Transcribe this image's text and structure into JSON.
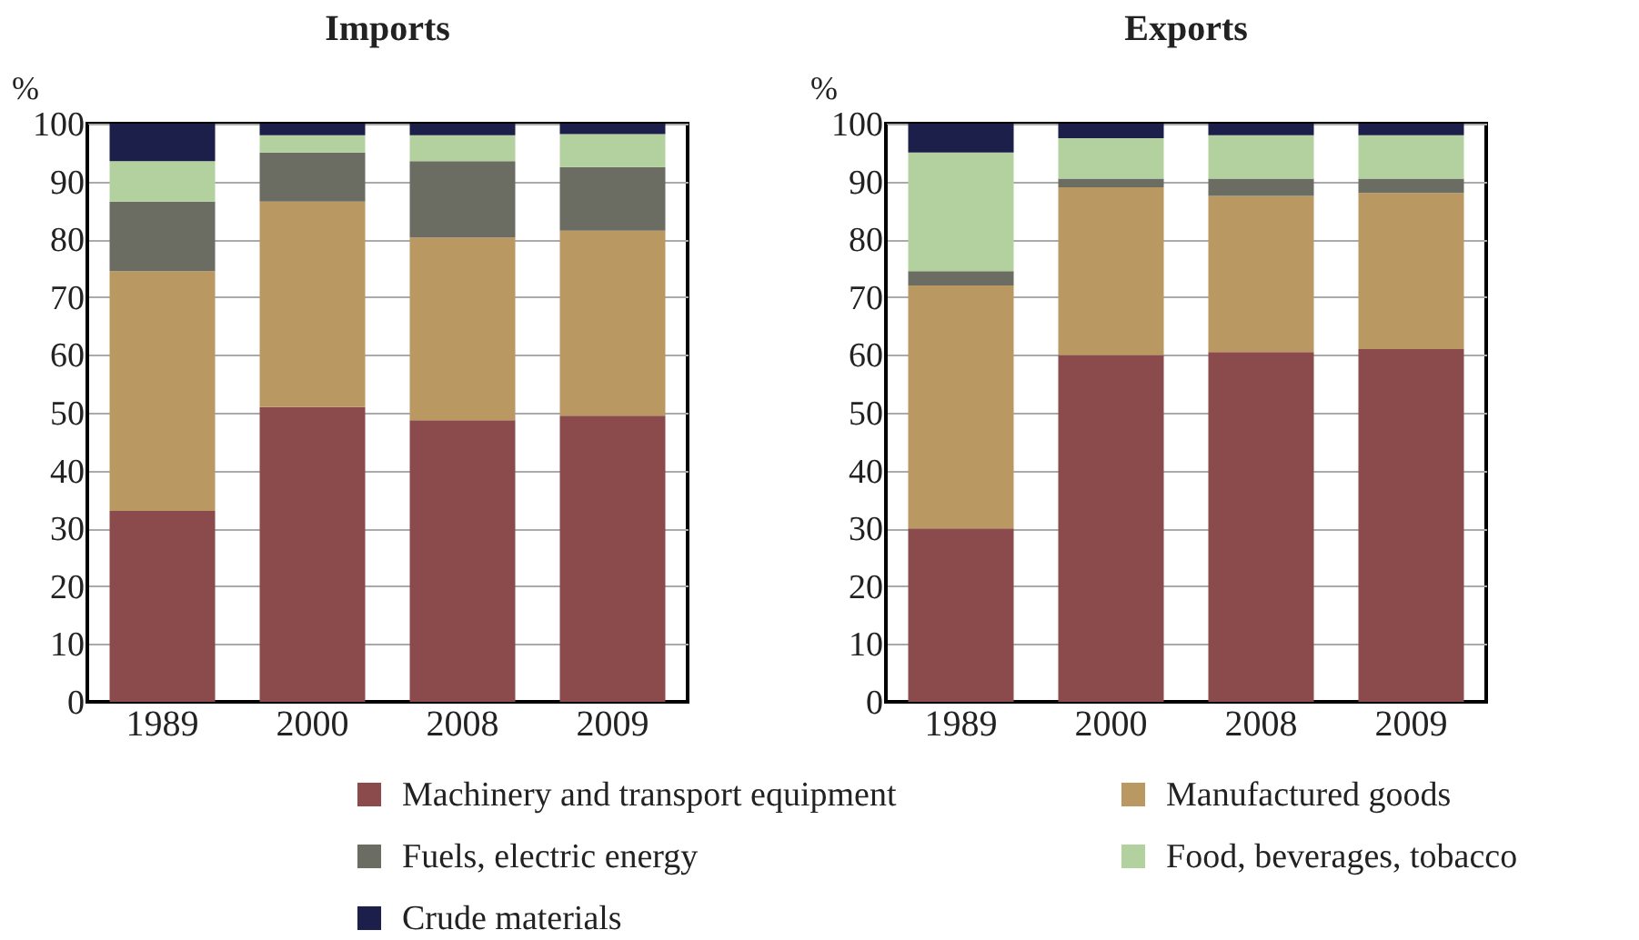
{
  "chart_data": [
    {
      "type": "bar",
      "title": "Imports",
      "ylabel": "%",
      "categories": [
        "1989",
        "2000",
        "2008",
        "2009"
      ],
      "stacked": true,
      "ylim": [
        0,
        100
      ],
      "yticks": [
        0,
        10,
        20,
        30,
        40,
        50,
        60,
        70,
        80,
        90,
        100
      ],
      "grid": "y",
      "legend": "bottom",
      "series": [
        {
          "name": "Machinery and transport equipment",
          "color": "#8b4a4c",
          "values": [
            33,
            51,
            48.7,
            49.5
          ]
        },
        {
          "name": "Manufactured goods",
          "color": "#b99862",
          "values": [
            41.5,
            35.5,
            31.6,
            32
          ]
        },
        {
          "name": "Fuels, electric energy",
          "color": "#6b6d62",
          "values": [
            12,
            8.5,
            13.2,
            11
          ]
        },
        {
          "name": "Food, beverages, tobacco",
          "color": "#b3d19e",
          "values": [
            7,
            3,
            4.5,
            5.7
          ]
        },
        {
          "name": "Crude materials",
          "color": "#1b1f4a",
          "values": [
            6.5,
            2,
            2,
            1.8
          ]
        }
      ]
    },
    {
      "type": "bar",
      "title": "Exports",
      "ylabel": "%",
      "categories": [
        "1989",
        "2000",
        "2008",
        "2009"
      ],
      "stacked": true,
      "ylim": [
        0,
        100
      ],
      "yticks": [
        0,
        10,
        20,
        30,
        40,
        50,
        60,
        70,
        80,
        90,
        100
      ],
      "grid": "y",
      "legend": "bottom",
      "series": [
        {
          "name": "Machinery and transport equipment",
          "color": "#8b4a4c",
          "values": [
            30,
            60,
            60.5,
            61
          ]
        },
        {
          "name": "Manufactured goods",
          "color": "#b99862",
          "values": [
            42,
            29,
            27,
            27
          ]
        },
        {
          "name": "Fuels, electric energy",
          "color": "#6b6d62",
          "values": [
            2.5,
            1.5,
            3,
            2.5
          ]
        },
        {
          "name": "Food, beverages, tobacco",
          "color": "#b3d19e",
          "values": [
            20.5,
            7,
            7.5,
            7.5
          ]
        },
        {
          "name": "Crude materials",
          "color": "#1b1f4a",
          "values": [
            5,
            2.5,
            2,
            2
          ]
        }
      ]
    }
  ]
}
